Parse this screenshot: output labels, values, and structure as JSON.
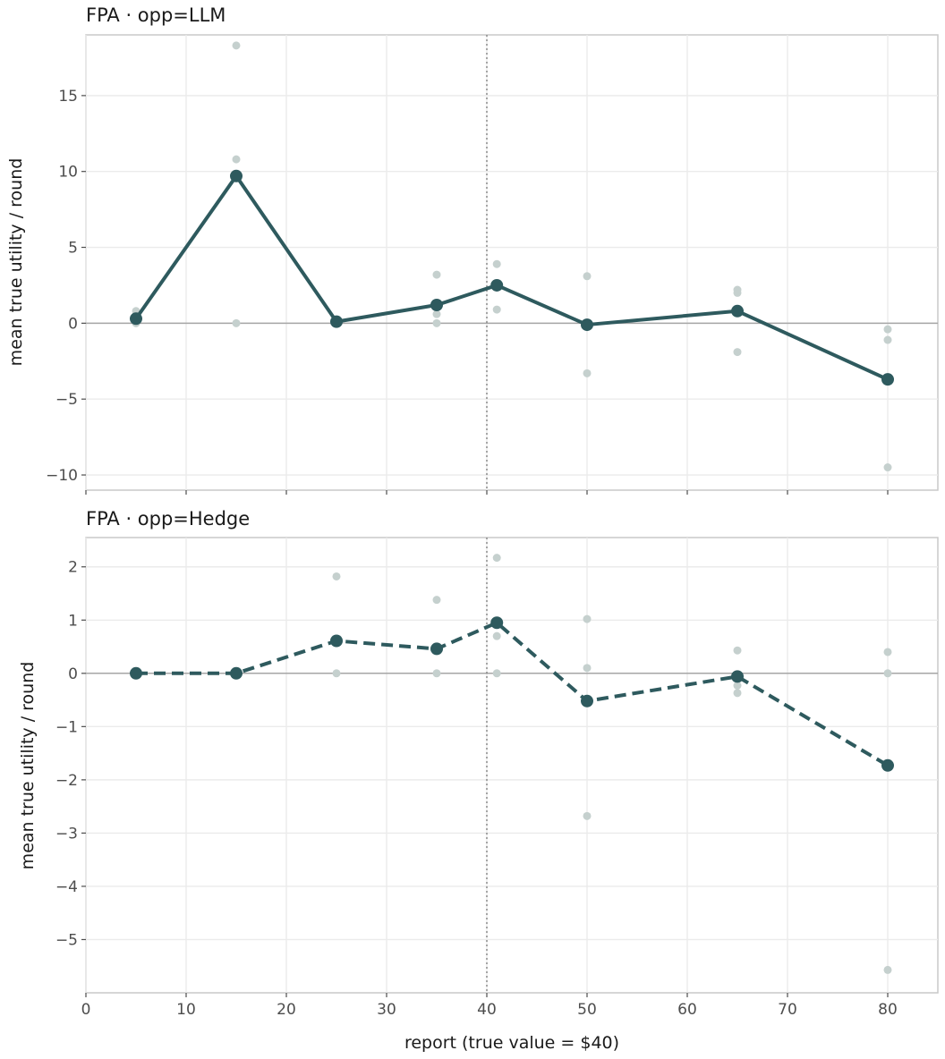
{
  "chart_data": [
    {
      "type": "line",
      "title": "FPA · opp=LLM",
      "xlabel": "",
      "ylabel": "mean true utility / round",
      "xlim": [
        0,
        85
      ],
      "ylim": [
        -11,
        19
      ],
      "xticks": [
        0,
        10,
        20,
        30,
        40,
        50,
        60,
        70,
        80
      ],
      "yticks": [
        -10,
        -5,
        0,
        5,
        10,
        15
      ],
      "ytick_labels": [
        "−10",
        "−5",
        "0",
        "5",
        "10",
        "15"
      ],
      "reference_vline_x": 40,
      "reference_hline_y": 0,
      "grid": true,
      "series": [
        {
          "style": "solid-line-with-markers",
          "color": "#2e5a5e",
          "x": [
            5,
            15,
            25,
            35,
            41,
            50,
            65,
            80
          ],
          "y": [
            0.3,
            9.7,
            0.1,
            1.2,
            2.5,
            -0.1,
            0.8,
            -3.7
          ]
        },
        {
          "style": "scatter",
          "color": "#c5d0ce",
          "x": [
            5,
            5,
            15,
            15,
            15,
            35,
            35,
            35,
            41,
            41,
            50,
            50,
            65,
            65,
            65,
            80,
            80,
            80
          ],
          "y": [
            0.8,
            0.0,
            18.3,
            10.8,
            0.0,
            3.2,
            0.6,
            0.0,
            3.9,
            0.9,
            3.1,
            -3.3,
            2.2,
            2.0,
            -1.9,
            -0.4,
            -1.1,
            -9.5
          ]
        }
      ]
    },
    {
      "type": "line",
      "title": "FPA · opp=Hedge",
      "xlabel": "report (true value = $40)",
      "ylabel": "mean true utility / round",
      "xlim": [
        0,
        85
      ],
      "ylim": [
        -6,
        2.55
      ],
      "xticks": [
        0,
        10,
        20,
        30,
        40,
        50,
        60,
        70,
        80
      ],
      "yticks": [
        -5,
        -4,
        -3,
        -2,
        -1,
        0,
        1,
        2
      ],
      "ytick_labels": [
        "−5",
        "−4",
        "−3",
        "−2",
        "−1",
        "0",
        "1",
        "2"
      ],
      "reference_vline_x": 40,
      "reference_hline_y": 0,
      "grid": true,
      "series": [
        {
          "style": "dashed-line-with-markers",
          "color": "#2e5a5e",
          "x": [
            5,
            15,
            25,
            35,
            41,
            50,
            65,
            80
          ],
          "y": [
            0.0,
            0.0,
            0.61,
            0.46,
            0.95,
            -0.52,
            -0.06,
            -1.73
          ]
        },
        {
          "style": "scatter",
          "color": "#c5d0ce",
          "x": [
            25,
            25,
            35,
            35,
            41,
            41,
            41,
            50,
            50,
            50,
            65,
            65,
            65,
            80,
            80,
            80
          ],
          "y": [
            1.82,
            0.0,
            1.38,
            0.0,
            2.17,
            0.7,
            0.0,
            1.02,
            0.1,
            -2.68,
            0.43,
            -0.23,
            -0.37,
            0.4,
            0.0,
            -5.57
          ]
        }
      ]
    }
  ]
}
